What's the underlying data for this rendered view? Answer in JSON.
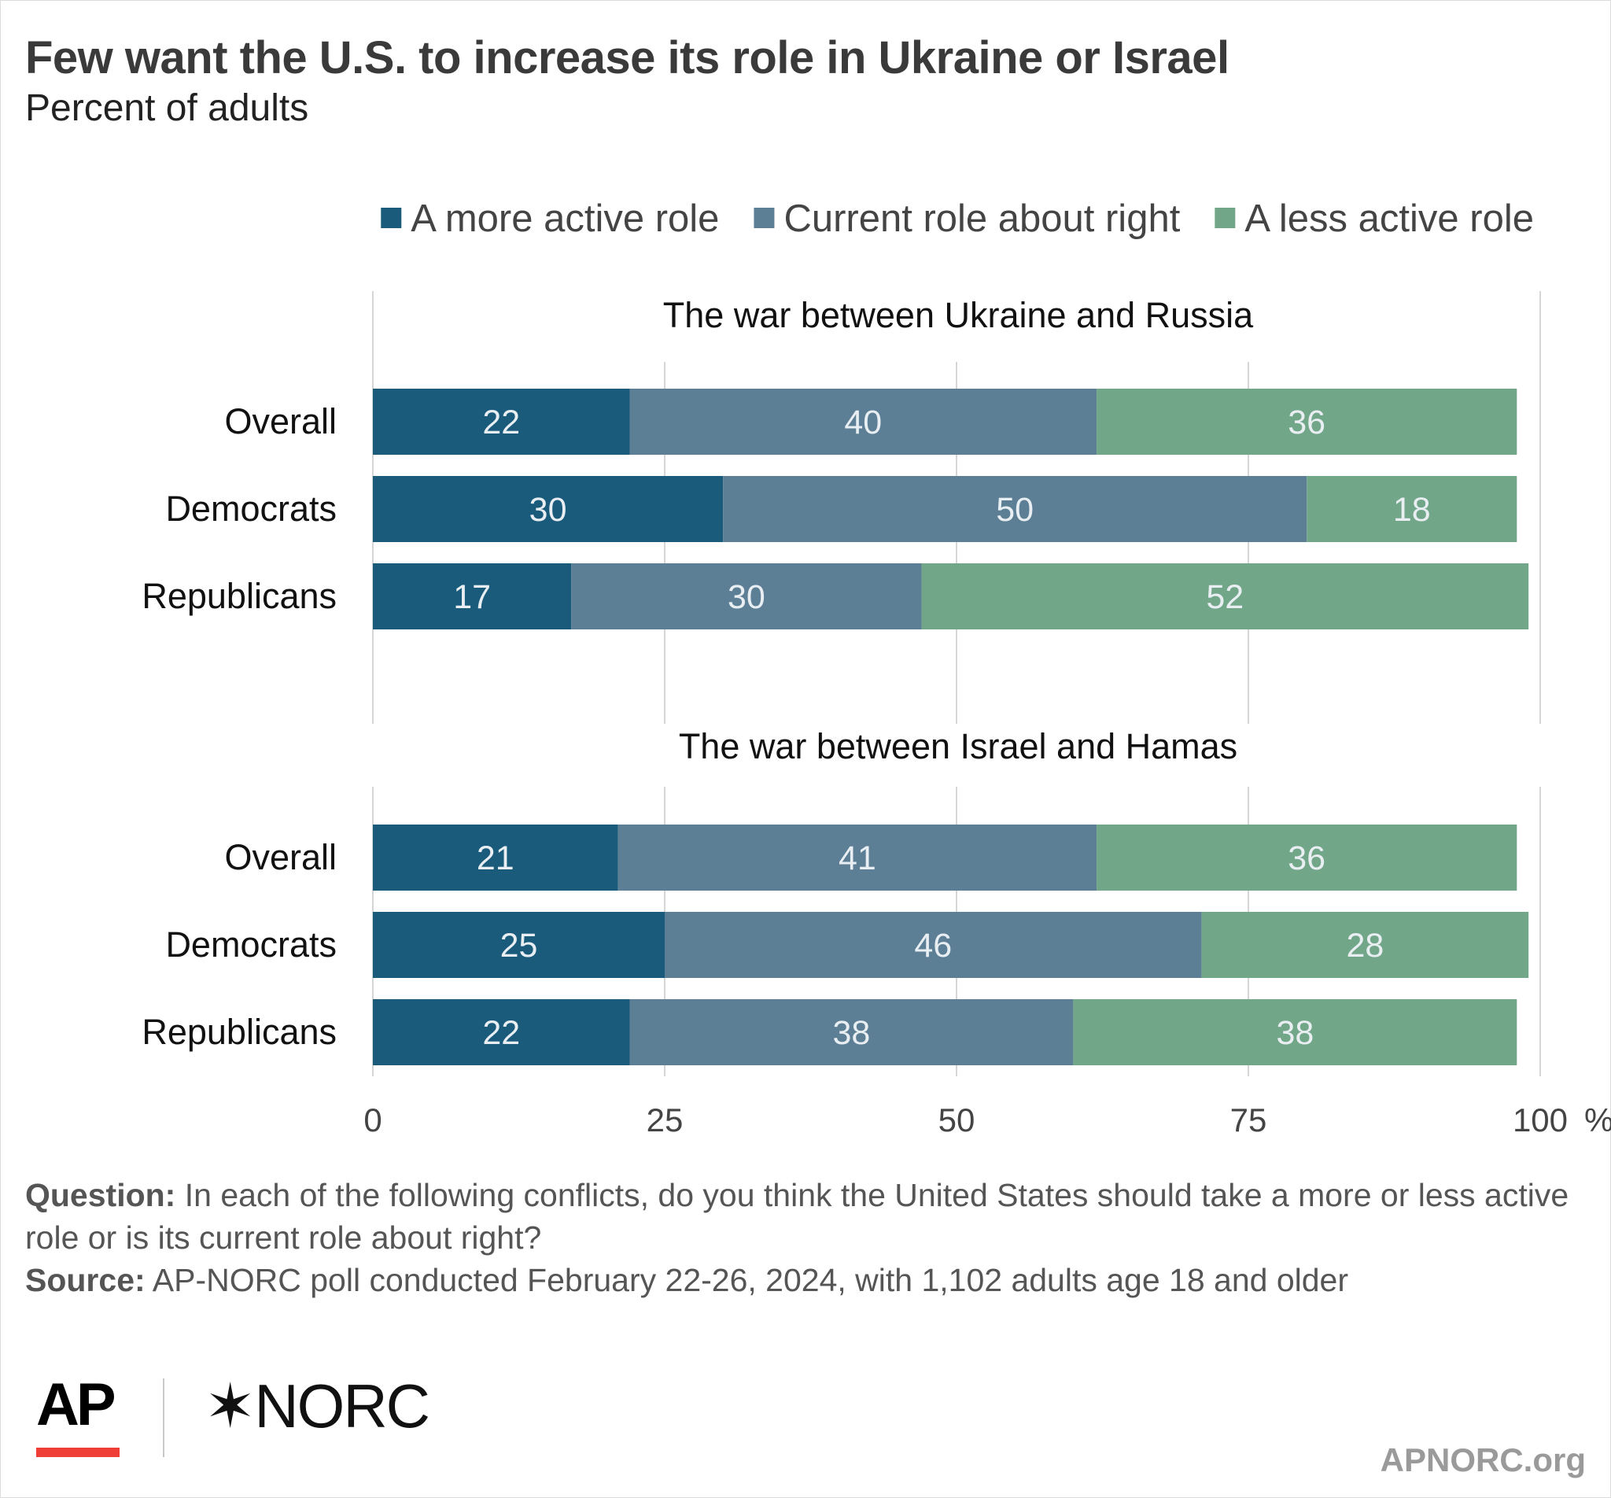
{
  "header": {
    "title": "Few want the U.S. to increase its role in Ukraine or Israel",
    "subtitle": "Percent of adults"
  },
  "notes": {
    "question_label": "Question:",
    "question_text": "In each of the following conflicts, do you think the United States should take a more or less active role or is its current role about right?",
    "source_label": "Source:",
    "source_text": "AP-NORC poll conducted February 22-26, 2024, with 1,102 adults age 18 and older"
  },
  "logos": {
    "ap": "AP",
    "norc": "✶NORC",
    "site": "APNORC.org"
  },
  "colors": {
    "more": "#1a5b7c",
    "current": "#5d7f96",
    "less": "#72a688",
    "grid": "#d6d6d6",
    "value_label": "#e8eef2"
  },
  "chart_data": {
    "type": "bar",
    "orientation": "horizontal",
    "stacked": true,
    "legend": [
      "A more active role",
      "Current role about right",
      "A less active role"
    ],
    "legend_position": "top-right",
    "xlim": [
      0,
      100
    ],
    "x_ticks": [
      "0",
      "25",
      "50",
      "75",
      "100"
    ],
    "x_unit": "%",
    "grid": true,
    "groups": [
      {
        "title": "The war between Ukraine and Russia",
        "categories": [
          "Overall",
          "Democrats",
          "Republicans"
        ],
        "series": [
          {
            "name": "A more active role",
            "values": [
              22,
              30,
              17
            ]
          },
          {
            "name": "Current role about right",
            "values": [
              40,
              50,
              30
            ]
          },
          {
            "name": "A less active role",
            "values": [
              36,
              18,
              52
            ]
          }
        ]
      },
      {
        "title": "The war between Israel and Hamas",
        "categories": [
          "Overall",
          "Democrats",
          "Republicans"
        ],
        "series": [
          {
            "name": "A more active role",
            "values": [
              21,
              25,
              22
            ]
          },
          {
            "name": "Current role about right",
            "values": [
              41,
              46,
              38
            ]
          },
          {
            "name": "A less active role",
            "values": [
              36,
              28,
              38
            ]
          }
        ]
      }
    ]
  }
}
